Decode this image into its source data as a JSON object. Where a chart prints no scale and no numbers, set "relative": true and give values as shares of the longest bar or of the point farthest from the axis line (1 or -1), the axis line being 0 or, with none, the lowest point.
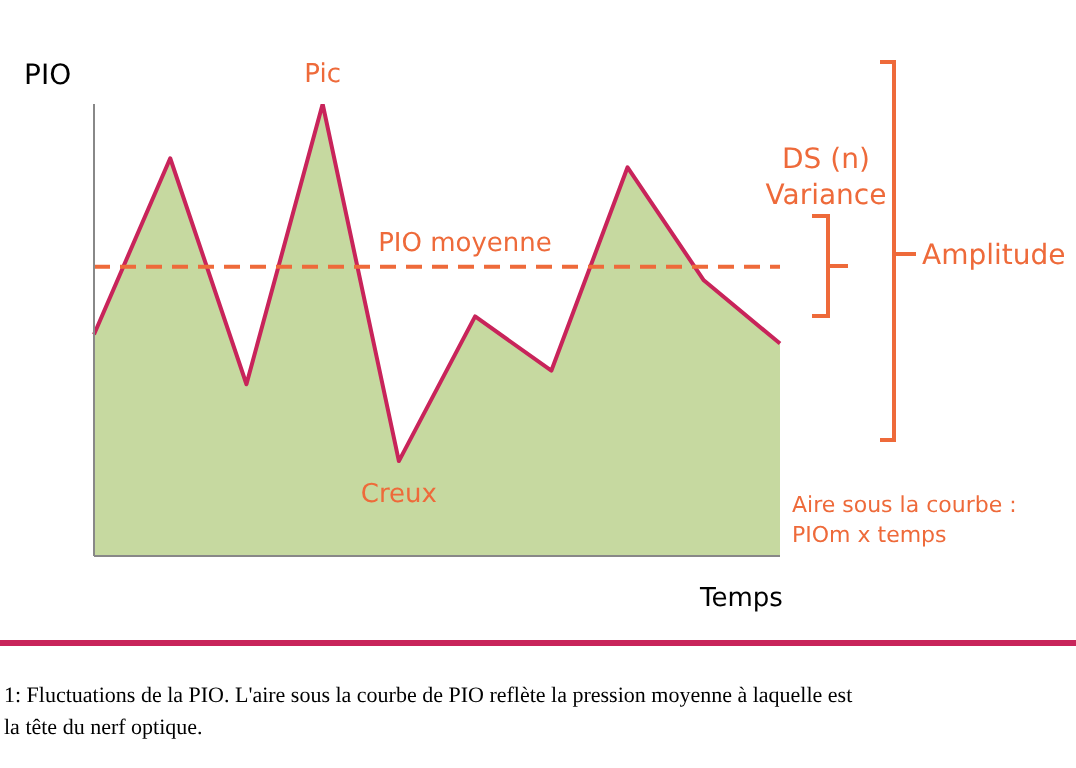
{
  "chart_data": {
    "type": "area",
    "relative": true,
    "ylabel": "PIO",
    "xlabel": "Temps",
    "tick_labels": false,
    "grid": false,
    "legend": false,
    "marker": "none",
    "line_style": "solid",
    "categories": [
      null,
      null,
      null,
      null,
      null,
      null,
      null,
      null,
      null,
      null
    ],
    "series": [
      {
        "color": "#c6d9a0",
        "values": [
          0.49,
          0.88,
          0.38,
          1,
          0.21,
          0.53,
          0.41,
          0.86,
          0.61,
          0.47
        ]
      },
      {
        "type": "line",
        "color": "#c8245a",
        "values": [
          0.49,
          0.88,
          0.38,
          1,
          0.21,
          0.53,
          0.41,
          0.86,
          0.61,
          0.47
        ]
      }
    ],
    "ref_lines": [
      {
        "axis": "y",
        "value": 0.64,
        "label": "PIO moyenne",
        "color": "#ee6a3a",
        "line_style": "dashed"
      }
    ],
    "annotations": [
      "Pic",
      "Creux",
      "DS (n) Variance",
      "Amplitude",
      "Aire sous la courbe : PIOm x temps",
      "1: Fluctuations de la PIO. L'aire sous la courbe de PIO reflète la pression moyenne à laquelle est",
      "la tête du nerf optique."
    ]
  }
}
